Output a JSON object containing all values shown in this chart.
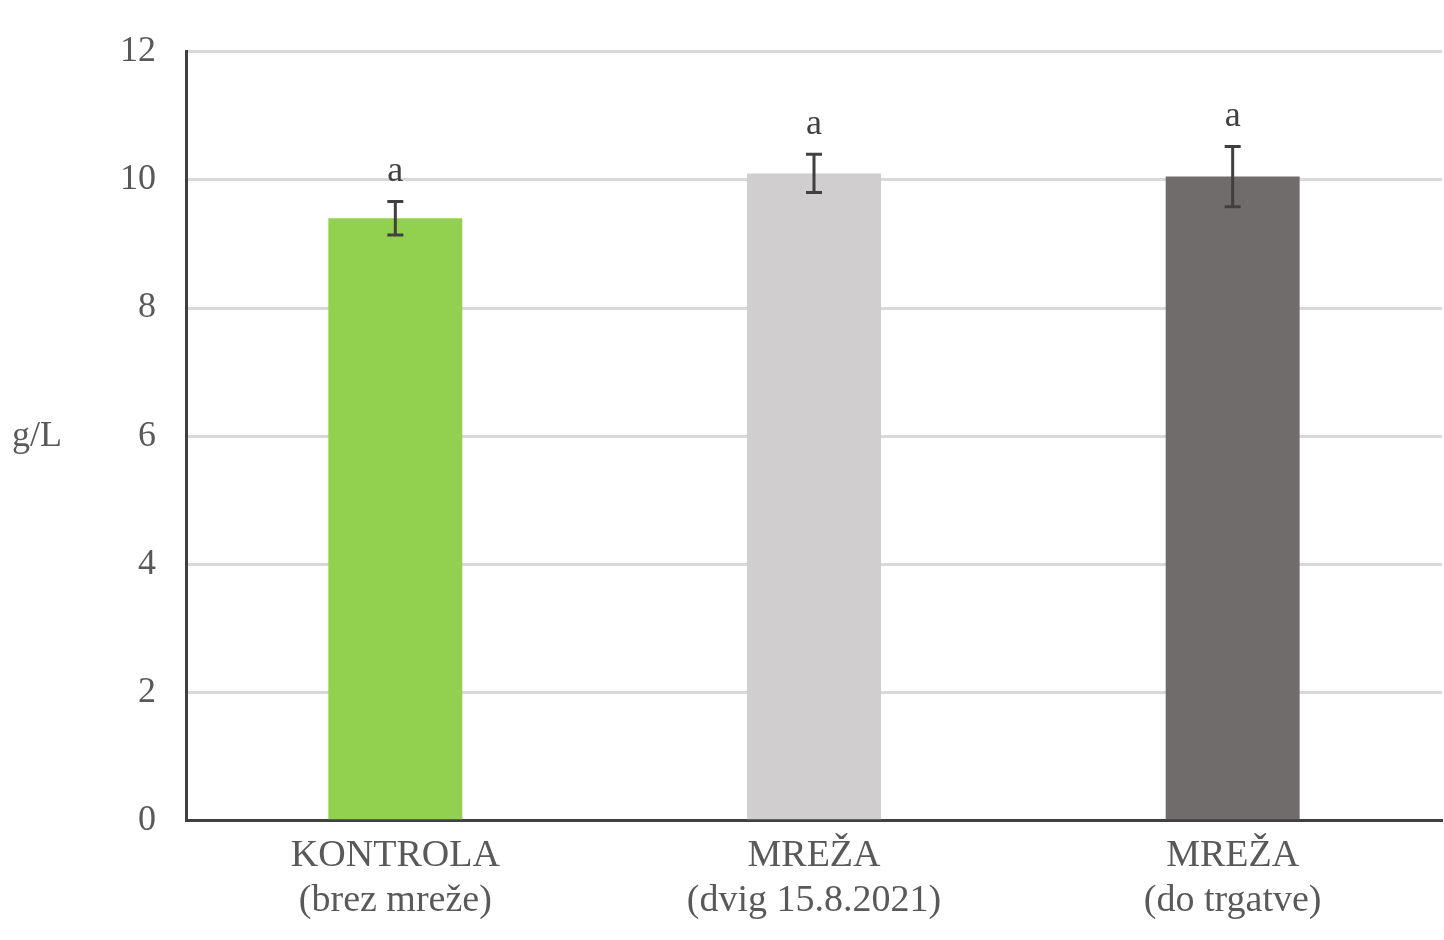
{
  "chart_data": {
    "type": "bar",
    "ylabel": "g/L",
    "categories": [
      "KONTROLA\n(brez mreže)",
      "MREŽA\n(dvig 15.8.2021)",
      "MREŽA\n(do trgatve)"
    ],
    "values": [
      9.4,
      10.1,
      10.05
    ],
    "colors": [
      "#92d050",
      "#d0cece",
      "#706c6b"
    ],
    "errors": [
      0.26,
      0.3,
      0.47
    ],
    "ylim": [
      0,
      12
    ],
    "yticks": [
      0,
      2,
      4,
      6,
      8,
      10,
      12
    ],
    "grid": "y",
    "legend": false,
    "annotations": [
      {
        "text": "a",
        "x": "KONTROLA\n(brez mreže)",
        "y": 9.66
      },
      {
        "text": "a",
        "x": "MREŽA\n(dvig 15.8.2021)",
        "y": 10.4
      },
      {
        "text": "a",
        "x": "MREŽA\n(do trgatve)",
        "y": 10.52
      }
    ]
  }
}
